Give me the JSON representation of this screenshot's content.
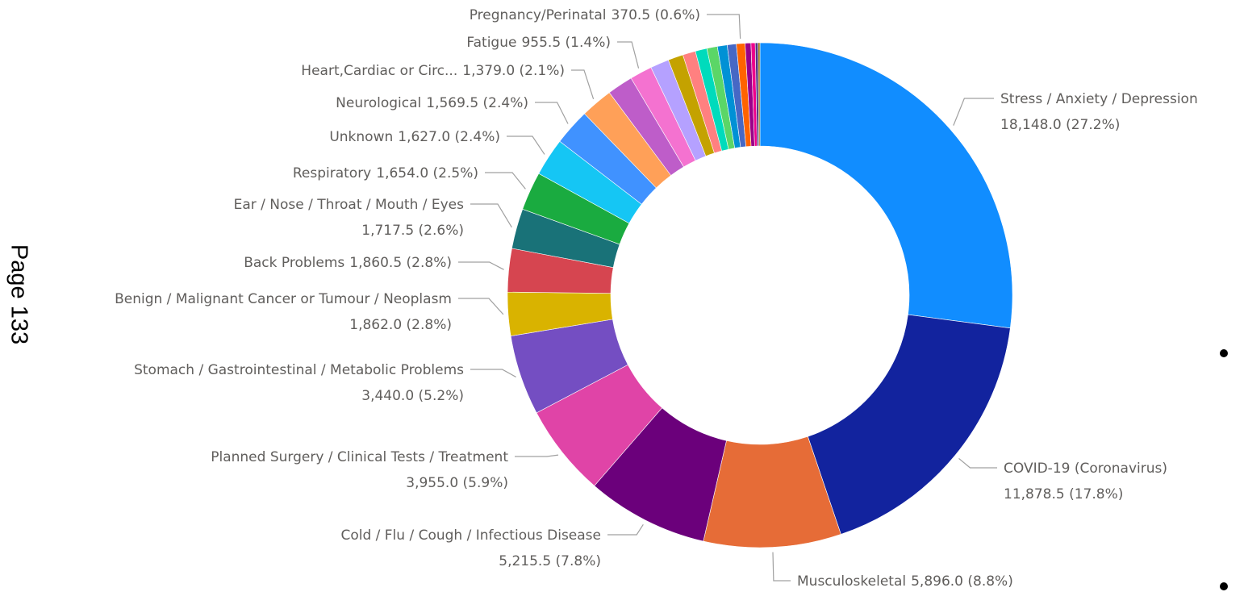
{
  "chart_data": {
    "type": "pie",
    "categories": [
      "Stress / Anxiety / Depression",
      "COVID-19 (Coronavirus)",
      "Musculoskeletal",
      "Cold / Flu / Cough / Infectious Disease",
      "Planned Surgery / Clinical Tests / Treatment",
      "Stomach / Gastrointestinal / Metabolic Problems",
      "Benign / Malignant Cancer or Tumour / Neoplasm",
      "Back Problems",
      "Ear / Nose / Throat / Mouth / Eyes",
      "Respiratory",
      "Unknown",
      "Neurological",
      "Heart,Cardiac or Circ...",
      null,
      "Fatigue",
      null,
      null,
      null,
      null,
      null,
      null,
      null,
      "Pregnancy/Perinatal",
      null,
      null,
      null,
      null
    ],
    "values": [
      18148.0,
      11878.5,
      5896.0,
      5215.5,
      3955.0,
      3440.0,
      1862.0,
      1860.5,
      1717.5,
      1654.0,
      1627.0,
      1569.5,
      1379.0,
      1100,
      955.5,
      800,
      650,
      550,
      500,
      450,
      420,
      390,
      370.5,
      250,
      180,
      120,
      80
    ],
    "value_labels": [
      "18,148.0 (27.2%)",
      "11,878.5 (17.8%)",
      "5,896.0 (8.8%)",
      "5,215.5 (7.8%)",
      "3,955.0 (5.9%)",
      "3,440.0 (5.2%)",
      "1,862.0 (2.8%)",
      "1,860.5 (2.8%)",
      "1,717.5 (2.6%)",
      "1,654.0 (2.5%)",
      "1,627.0 (2.4%)",
      "1,569.5 (2.4%)",
      "1,379.0 (2.1%)",
      null,
      "955.5 (1.4%)",
      null,
      null,
      null,
      null,
      null,
      null,
      null,
      "370.5 (0.6%)",
      null,
      null,
      null,
      null
    ],
    "colors": [
      "#118DFF",
      "#12239E",
      "#E66C37",
      "#6B007B",
      "#E044A7",
      "#744EC2",
      "#D9B300",
      "#D64550",
      "#197278",
      "#1AAB40",
      "#15C6F4",
      "#4092FF",
      "#FFA058",
      "#BE5DC9",
      "#F472D0",
      "#B5A1FF",
      "#C4A200",
      "#FF8080",
      "#00DBBC",
      "#5BD667",
      "#0091D5",
      "#4668C5",
      "#FF6300",
      "#99008A",
      "#EC008C",
      "#533285",
      "#99700A"
    ],
    "donut": true
  },
  "page_label": "Page 133"
}
